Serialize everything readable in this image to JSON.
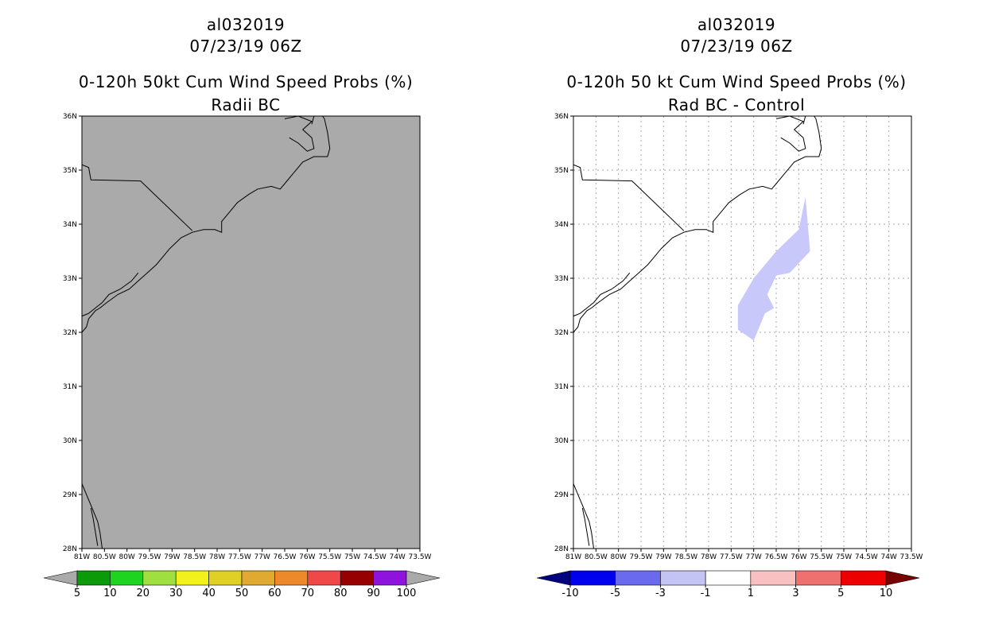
{
  "chart_data": [
    {
      "type": "heatmap",
      "storm_id": "al032019",
      "datetime": "07/23/19 06Z",
      "title": "0-120h 50kt Cum Wind Speed Probs (%)",
      "subtitle": "Radii BC",
      "x_ticks": [
        "81W",
        "80.5W",
        "80W",
        "79.5W",
        "79W",
        "78.5W",
        "78W",
        "77.5W",
        "77W",
        "76.5W",
        "76W",
        "75.5W",
        "75W",
        "74.5W",
        "74W",
        "73.5W"
      ],
      "y_ticks": [
        "28N",
        "29N",
        "30N",
        "31N",
        "32N",
        "33N",
        "34N",
        "35N",
        "36N"
      ],
      "xlim": [
        -81,
        -73.5
      ],
      "ylim": [
        28,
        36
      ],
      "grid": false,
      "background_color": "#aaaaaa",
      "colorbar": {
        "labels": [
          "5",
          "10",
          "20",
          "30",
          "40",
          "50",
          "60",
          "70",
          "80",
          "90",
          "100"
        ],
        "colors": [
          "#aaaaaa",
          "#0a9a0a",
          "#1fd41f",
          "#9fe040",
          "#f2f21a",
          "#e0d025",
          "#e0aa30",
          "#ee8828",
          "#f04848",
          "#960000",
          "#8f13dc",
          "#aaaaaa"
        ]
      },
      "shaded_regions": []
    },
    {
      "type": "heatmap",
      "storm_id": "al032019",
      "datetime": "07/23/19 06Z",
      "title": "0-120h 50 kt Cum Wind Speed Probs (%)",
      "subtitle": "Rad BC - Control",
      "x_ticks": [
        "81W",
        "80.5W",
        "80W",
        "79.5W",
        "79W",
        "78.5W",
        "78W",
        "77.5W",
        "77W",
        "76.5W",
        "76W",
        "75.5W",
        "75W",
        "74.5W",
        "74W",
        "73.5W"
      ],
      "y_ticks": [
        "28N",
        "29N",
        "30N",
        "31N",
        "32N",
        "33N",
        "34N",
        "35N",
        "36N"
      ],
      "xlim": [
        -81,
        -73.5
      ],
      "ylim": [
        28,
        36
      ],
      "grid": true,
      "background_color": "#ffffff",
      "colorbar": {
        "labels": [
          "-10",
          "-5",
          "-3",
          "-1",
          "1",
          "3",
          "5",
          "10"
        ],
        "colors": [
          "#000080",
          "#0000ee",
          "#6a6aee",
          "#c4c4f4",
          "#ffffff",
          "#f8c0c0",
          "#f07070",
          "#ee0000",
          "#7a0000"
        ]
      },
      "shaded_regions": [
        {
          "color": "#c8c8fa",
          "range": "-3 to -1",
          "polygon": [
            [
              -77.35,
              32.05
            ],
            [
              -77.35,
              32.5
            ],
            [
              -77.0,
              33.0
            ],
            [
              -76.5,
              33.5
            ],
            [
              -76.0,
              33.9
            ],
            [
              -75.85,
              34.5
            ],
            [
              -75.8,
              34.0
            ],
            [
              -75.75,
              33.5
            ],
            [
              -76.2,
              33.1
            ],
            [
              -76.5,
              33.05
            ],
            [
              -76.7,
              32.7
            ],
            [
              -76.55,
              32.45
            ],
            [
              -76.75,
              32.35
            ],
            [
              -77.0,
              31.85
            ]
          ]
        }
      ]
    }
  ]
}
